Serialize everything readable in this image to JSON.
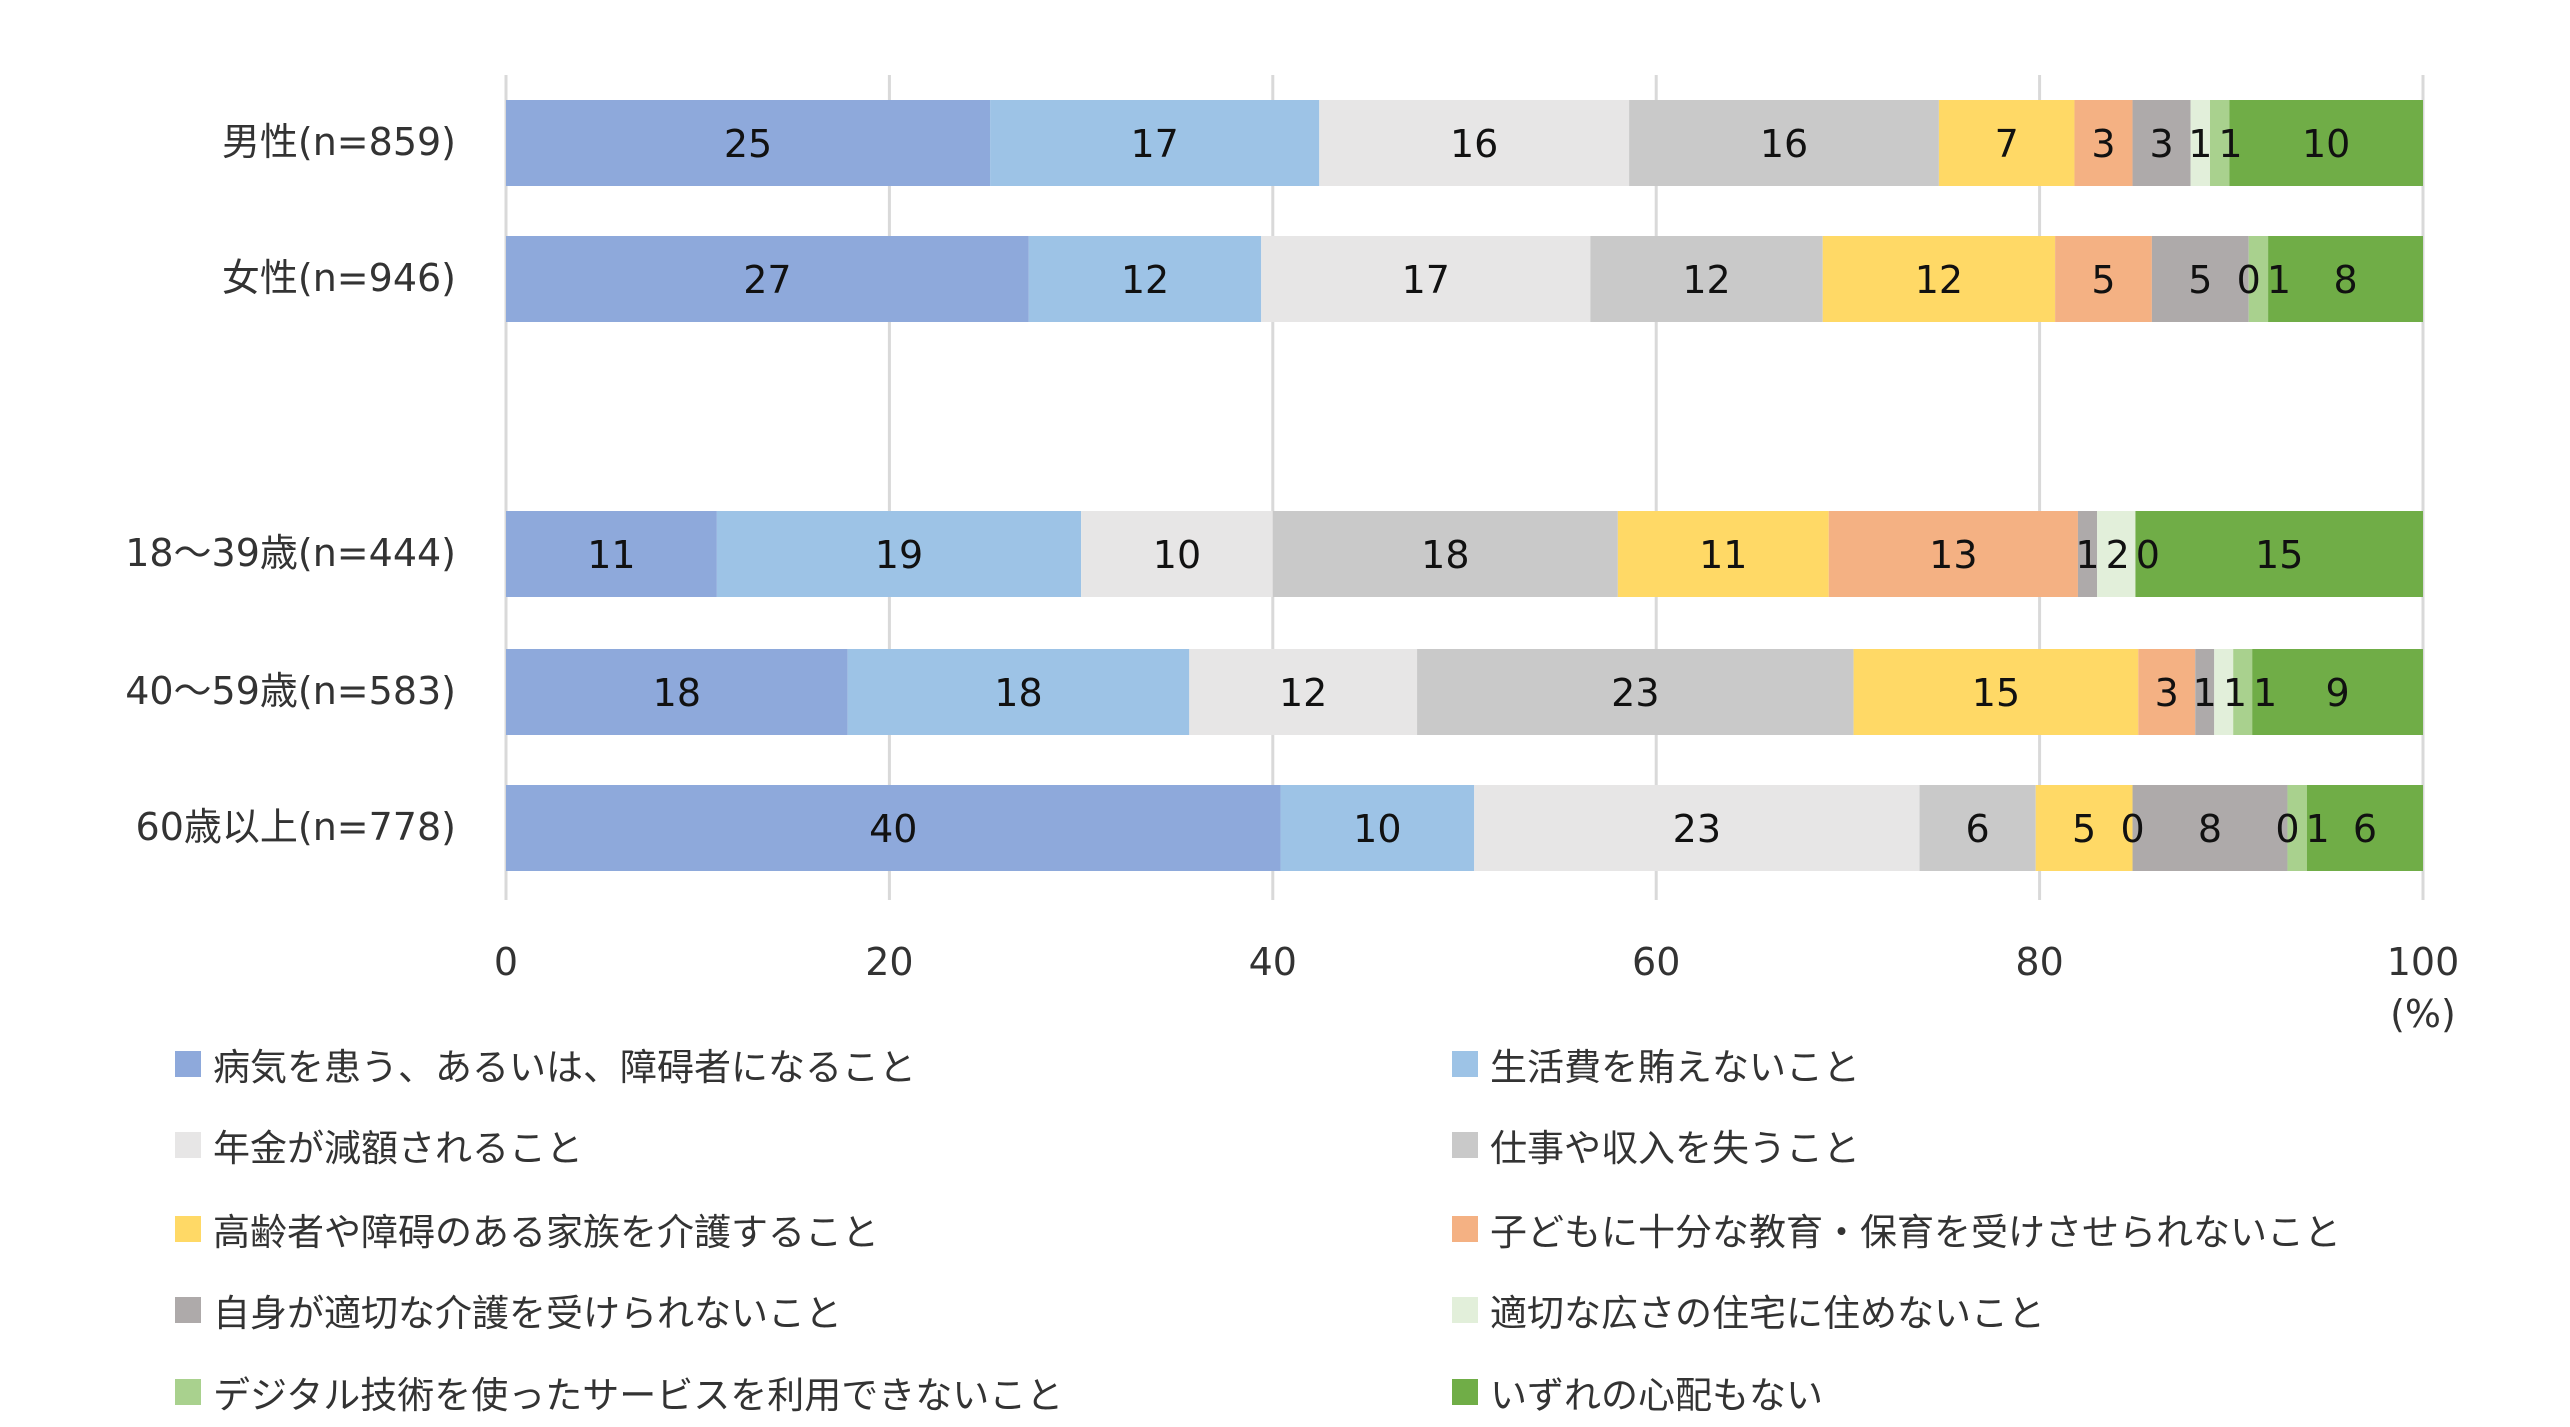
{
  "chart_data": {
    "type": "bar",
    "orientation": "horizontal-stacked-100",
    "categories": [
      "男性(n=859)",
      "女性(n=946)",
      "18〜39歳(n=444)",
      "40〜59歳(n=583)",
      "60歳以上(n=778)"
    ],
    "category_gap_after": [
      1
    ],
    "series": [
      {
        "name": "病気を患う、あるいは、障碍者になること",
        "color": "#8EA9DB",
        "values": [
          25,
          27,
          11,
          18,
          40
        ]
      },
      {
        "name": "生活費を賄えないこと",
        "color": "#9DC3E6",
        "values": [
          17,
          12,
          19,
          18,
          10
        ]
      },
      {
        "name": "年金が減額されること",
        "color": "#E7E6E6",
        "values": [
          16,
          17,
          10,
          12,
          23
        ]
      },
      {
        "name": "仕事や収入を失うこと",
        "color": "#C9C9C9",
        "values": [
          16,
          12,
          18,
          23,
          6
        ]
      },
      {
        "name": "高齢者や障碍のある家族を介護すること",
        "color": "#FFD966",
        "values": [
          7,
          12,
          11,
          15,
          5
        ]
      },
      {
        "name": "子どもに十分な教育・保育を受けさせられないこと",
        "color": "#F4B183",
        "values": [
          3,
          5,
          13,
          3,
          0
        ]
      },
      {
        "name": "自身が適切な介護を受けられないこと",
        "color": "#AEAAAA",
        "values": [
          3,
          5,
          1,
          1,
          8
        ]
      },
      {
        "name": "適切な広さの住宅に住めないこと",
        "color": "#E2EFDA",
        "values": [
          1,
          0,
          2,
          1,
          0
        ]
      },
      {
        "name": "デジタル技術を使ったサービスを利用できないこと",
        "color": "#A9D18E",
        "values": [
          1,
          1,
          0,
          1,
          1
        ]
      },
      {
        "name": "いずれの心配もない",
        "color": "#70AD47",
        "values": [
          10,
          8,
          15,
          9,
          6
        ]
      }
    ],
    "xlim": [
      0,
      100
    ],
    "xticks": [
      "0",
      "20",
      "40",
      "60",
      "80",
      "100"
    ],
    "xlabel": "(%)",
    "grid": true,
    "legend_position": "bottom"
  }
}
